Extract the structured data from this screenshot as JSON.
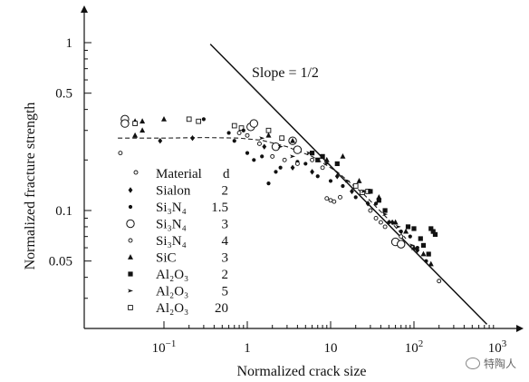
{
  "chart_data": {
    "type": "scatter",
    "x_scale": "log",
    "y_scale": "log",
    "xlabel": "Normalized crack size",
    "ylabel": "Normalized fracture strength",
    "xlim": [
      0.01,
      1000
    ],
    "ylim": [
      0.02,
      1.8
    ],
    "x_ticks": [
      {
        "value": 0.1,
        "base": "10",
        "exp": "−1"
      },
      {
        "value": 1,
        "base": "1",
        "exp": ""
      },
      {
        "value": 10,
        "base": "10",
        "exp": ""
      },
      {
        "value": 100,
        "base": "10",
        "exp": "2"
      },
      {
        "value": 1000,
        "base": "10",
        "exp": "3"
      }
    ],
    "y_ticks": [
      {
        "value": 1,
        "label": "1"
      },
      {
        "value": 0.5,
        "label": "0.5"
      },
      {
        "value": 0.1,
        "label": "0.1"
      },
      {
        "value": 0.05,
        "label": "0.05"
      }
    ],
    "slope_line": {
      "label": "Slope = 1/2",
      "points": [
        [
          0.36,
          0.98
        ],
        [
          750,
          0.021
        ]
      ]
    },
    "dashed_curve": [
      [
        0.028,
        0.27
      ],
      [
        0.1,
        0.27
      ],
      [
        0.3,
        0.272
      ],
      [
        0.8,
        0.27
      ],
      [
        1.5,
        0.262
      ],
      [
        3,
        0.24
      ],
      [
        6,
        0.21
      ],
      [
        12,
        0.17
      ],
      [
        25,
        0.125
      ],
      [
        50,
        0.088
      ],
      [
        80,
        0.068
      ]
    ],
    "legend": {
      "header": {
        "label": "Material",
        "value": "d"
      },
      "entries": [
        {
          "marker": "diamond",
          "label": "Sialon",
          "value": "2"
        },
        {
          "marker": "dot",
          "label": "Si₃N₄",
          "value": "1.5"
        },
        {
          "marker": "circle",
          "label": "Si₃N₄",
          "value": "3"
        },
        {
          "marker": "ring",
          "label": "Si₃N₄",
          "value": "4"
        },
        {
          "marker": "triangle",
          "label": "SiC",
          "value": "3"
        },
        {
          "marker": "square",
          "label": "Al₂O₃",
          "value": "2"
        },
        {
          "marker": "arrow",
          "label": "Al₂O₃",
          "value": "5"
        },
        {
          "marker": "open-square",
          "label": "Al₂O₃",
          "value": "20"
        }
      ]
    },
    "series": [
      {
        "marker": "circle",
        "points": [
          [
            0.034,
            0.35
          ],
          [
            0.034,
            0.33
          ],
          [
            1.1,
            0.315
          ],
          [
            1.2,
            0.33
          ],
          [
            2.2,
            0.24
          ],
          [
            3.5,
            0.26
          ],
          [
            4.0,
            0.23
          ],
          [
            60,
            0.065
          ],
          [
            70,
            0.063
          ]
        ]
      },
      {
        "marker": "triangle",
        "points": [
          [
            0.045,
            0.34
          ],
          [
            0.055,
            0.34
          ],
          [
            0.1,
            0.35
          ],
          [
            0.045,
            0.28
          ],
          [
            0.055,
            0.3
          ],
          [
            1.8,
            0.28
          ],
          [
            3.5,
            0.26
          ],
          [
            9,
            0.2
          ],
          [
            14,
            0.21
          ],
          [
            22,
            0.15
          ],
          [
            38,
            0.12
          ],
          [
            60,
            0.085
          ],
          [
            80,
            0.075
          ],
          [
            100,
            0.06
          ],
          [
            130,
            0.055
          ],
          [
            160,
            0.048
          ]
        ]
      },
      {
        "marker": "open-square",
        "points": [
          [
            0.045,
            0.33
          ],
          [
            0.2,
            0.35
          ],
          [
            0.26,
            0.34
          ],
          [
            0.7,
            0.32
          ],
          [
            0.85,
            0.31
          ],
          [
            1.8,
            0.3
          ],
          [
            2.6,
            0.27
          ],
          [
            20,
            0.14
          ],
          [
            24,
            0.128
          ],
          [
            28,
            0.13
          ]
        ]
      },
      {
        "marker": "square",
        "points": [
          [
            6,
            0.22
          ],
          [
            7,
            0.2
          ],
          [
            8,
            0.21
          ],
          [
            12,
            0.19
          ],
          [
            30,
            0.13
          ],
          [
            38,
            0.115
          ],
          [
            45,
            0.1
          ],
          [
            85,
            0.08
          ],
          [
            100,
            0.078
          ],
          [
            120,
            0.068
          ],
          [
            130,
            0.062
          ],
          [
            150,
            0.055
          ],
          [
            160,
            0.078
          ],
          [
            170,
            0.075
          ],
          [
            180,
            0.072
          ]
        ]
      },
      {
        "marker": "dot",
        "points": [
          [
            0.3,
            0.35
          ],
          [
            0.6,
            0.29
          ],
          [
            0.7,
            0.26
          ],
          [
            0.9,
            0.3
          ],
          [
            1.0,
            0.22
          ],
          [
            1.2,
            0.2
          ],
          [
            1.5,
            0.21
          ],
          [
            2.2,
            0.17
          ],
          [
            1.8,
            0.145
          ],
          [
            2.5,
            0.18
          ],
          [
            4,
            0.195
          ],
          [
            5,
            0.19
          ],
          [
            7,
            0.16
          ],
          [
            10,
            0.15
          ],
          [
            14,
            0.14
          ],
          [
            20,
            0.12
          ],
          [
            35,
            0.11
          ],
          [
            50,
            0.085
          ],
          [
            70,
            0.075
          ],
          [
            90,
            0.07
          ],
          [
            110,
            0.06
          ],
          [
            140,
            0.05
          ]
        ]
      },
      {
        "marker": "ring",
        "points": [
          [
            0.03,
            0.22
          ],
          [
            0.8,
            0.29
          ],
          [
            1.0,
            0.28
          ],
          [
            1.4,
            0.25
          ],
          [
            2.0,
            0.21
          ],
          [
            2.8,
            0.2
          ],
          [
            4,
            0.19
          ],
          [
            6,
            0.2
          ],
          [
            8,
            0.18
          ],
          [
            9,
            0.118
          ],
          [
            10,
            0.115
          ],
          [
            11,
            0.113
          ],
          [
            13,
            0.12
          ],
          [
            30,
            0.1
          ],
          [
            35,
            0.09
          ],
          [
            40,
            0.085
          ],
          [
            45,
            0.08
          ],
          [
            70,
            0.07
          ],
          [
            200,
            0.038
          ]
        ]
      },
      {
        "marker": "arrow",
        "points": [
          [
            1.5,
            0.27
          ],
          [
            2.5,
            0.24
          ],
          [
            3.5,
            0.21
          ],
          [
            5.5,
            0.22
          ],
          [
            9,
            0.19
          ],
          [
            16,
            0.15
          ],
          [
            25,
            0.13
          ],
          [
            45,
            0.095
          ],
          [
            65,
            0.08
          ],
          [
            95,
            0.062
          ]
        ]
      },
      {
        "marker": "diamond",
        "points": [
          [
            0.09,
            0.26
          ],
          [
            0.22,
            0.27
          ],
          [
            1.6,
            0.24
          ],
          [
            3.5,
            0.18
          ],
          [
            6,
            0.17
          ],
          [
            12,
            0.16
          ],
          [
            18,
            0.13
          ],
          [
            28,
            0.11
          ],
          [
            55,
            0.085
          ],
          [
            110,
            0.058
          ]
        ]
      }
    ]
  },
  "watermark": {
    "text": "特陶人"
  }
}
